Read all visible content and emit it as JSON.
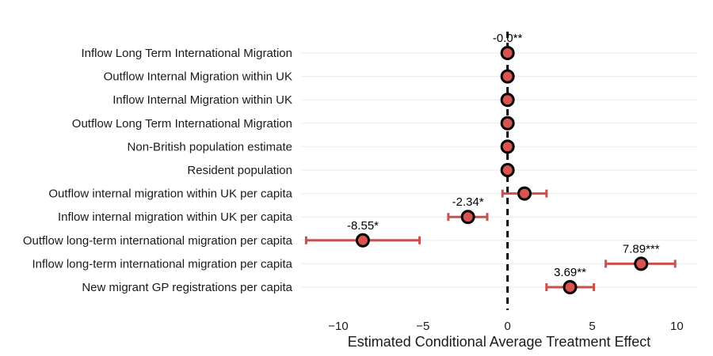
{
  "chart_data": {
    "type": "scatter",
    "subtype": "coefficient-plot",
    "xlabel": "Estimated Conditional Average Treatment Effect",
    "xlim": [
      -12.2,
      11.2
    ],
    "xticks": [
      -10,
      -5,
      0,
      5,
      10
    ],
    "xtick_labels": [
      "−10",
      "−5",
      "0",
      "5",
      "10"
    ],
    "reference_line_x": 0,
    "grid": "horizontal-major",
    "point_color": "#d9534f",
    "errorbar_color": "#c9504c",
    "categories": [
      "Inflow Long Term International Migration",
      "Outflow Internal Migration within UK",
      "Inflow Internal Migration within UK",
      "Outflow Long Term International Migration",
      "Non-British population estimate",
      "Resident population",
      "Outflow internal migration within UK per capita",
      "Inflow internal migration within UK per capita",
      "Outflow long-term international migration per capita",
      "Inflow long-term international migration per capita",
      "New migrant GP registrations per capita"
    ],
    "series": [
      {
        "estimate": [
          0.0,
          0.0,
          0.0,
          0.0,
          0.0,
          0.0,
          1.0,
          -2.34,
          -8.55,
          7.89,
          3.69
        ],
        "ci_low": [
          -0.05,
          -0.05,
          -0.05,
          -0.05,
          -0.05,
          -0.05,
          -0.3,
          -3.5,
          -11.9,
          5.8,
          2.3
        ],
        "ci_high": [
          0.05,
          0.05,
          0.05,
          0.05,
          0.05,
          0.05,
          2.3,
          -1.2,
          -5.2,
          9.9,
          5.1
        ],
        "labels": [
          "-0.0**",
          "",
          "",
          "",
          "",
          "",
          "",
          "-2.34*",
          "-8.55*",
          "7.89***",
          "3.69**"
        ]
      }
    ]
  }
}
